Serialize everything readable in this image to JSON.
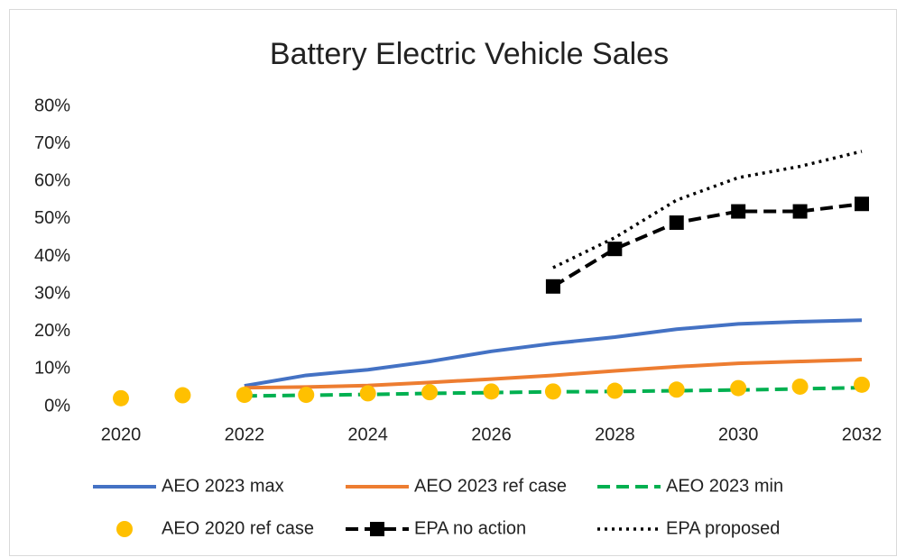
{
  "chart_data": {
    "type": "line",
    "title": "Battery Electric Vehicle Sales",
    "x": [
      2020,
      2021,
      2022,
      2023,
      2024,
      2025,
      2026,
      2027,
      2028,
      2029,
      2030,
      2031,
      2032
    ],
    "xlim": [
      2020,
      2032
    ],
    "xticks": [
      2020,
      2022,
      2024,
      2026,
      2028,
      2030,
      2032
    ],
    "ylim": [
      0,
      80
    ],
    "yticks": [
      {
        "value": 0,
        "label": "0%"
      },
      {
        "value": 10,
        "label": "10%"
      },
      {
        "value": 20,
        "label": "20%"
      },
      {
        "value": 30,
        "label": "30%"
      },
      {
        "value": 40,
        "label": "40%"
      },
      {
        "value": 50,
        "label": "50%"
      },
      {
        "value": 60,
        "label": "60%"
      },
      {
        "value": 70,
        "label": "70%"
      },
      {
        "value": 80,
        "label": "80%"
      }
    ],
    "grid": false,
    "legend": "bottom",
    "series": [
      {
        "name": "AEO 2023 max",
        "color": "#4472c4",
        "line_style": "solid",
        "marker": "none",
        "values": [
          null,
          null,
          5.5,
          8.3,
          9.8,
          12,
          14.7,
          16.8,
          18.5,
          20.6,
          22,
          22.6,
          23
        ]
      },
      {
        "name": "AEO 2023 ref case",
        "color": "#ed7d31",
        "line_style": "solid",
        "marker": "none",
        "values": [
          null,
          null,
          5,
          5.2,
          5.6,
          6.4,
          7.3,
          8.3,
          9.5,
          10.6,
          11.5,
          12,
          12.5
        ]
      },
      {
        "name": "AEO 2023 min",
        "color": "#00b050",
        "line_style": "dashed",
        "marker": "none",
        "values": [
          null,
          null,
          2.8,
          3.0,
          3.2,
          3.5,
          3.7,
          3.9,
          4.0,
          4.2,
          4.4,
          4.7,
          5.0
        ]
      },
      {
        "name": "AEO 2020 ref case",
        "color": "#ffc000",
        "line_style": "none",
        "marker": "circle",
        "values": [
          2.2,
          3.0,
          3.1,
          3.1,
          3.5,
          3.8,
          4.0,
          4.0,
          4.2,
          4.5,
          4.9,
          5.3,
          5.8
        ]
      },
      {
        "name": "EPA no action",
        "color": "#000000",
        "line_style": "dashed",
        "marker": "square",
        "values": [
          null,
          null,
          null,
          null,
          null,
          null,
          null,
          32,
          42,
          49,
          52,
          52,
          54
        ]
      },
      {
        "name": "EPA proposed",
        "color": "#000000",
        "line_style": "dotted",
        "marker": "none",
        "values": [
          null,
          null,
          null,
          null,
          null,
          null,
          null,
          37,
          45,
          55,
          61,
          64,
          68
        ]
      }
    ]
  }
}
